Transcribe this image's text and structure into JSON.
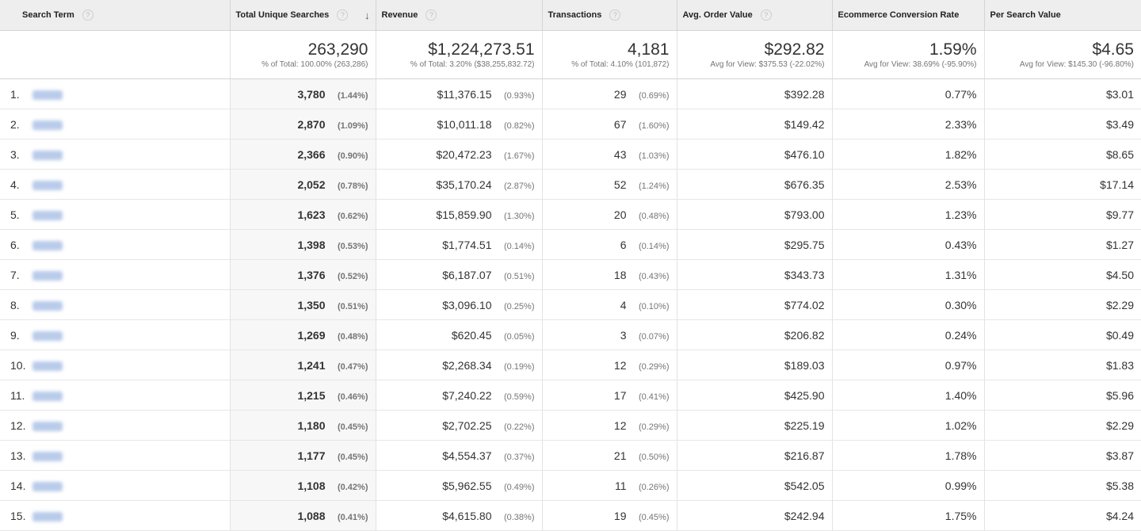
{
  "headers": {
    "search_term": "Search Term",
    "total_unique_searches": "Total Unique Searches",
    "revenue": "Revenue",
    "transactions": "Transactions",
    "avg_order_value": "Avg. Order Value",
    "conversion_rate": "Ecommerce Conversion Rate",
    "per_search_value": "Per Search Value"
  },
  "icons": {
    "help": "help-circle-icon",
    "sort": "arrow-down-icon"
  },
  "totals": {
    "searches": "263,290",
    "searches_sub": "% of Total: 100.00% (263,286)",
    "revenue": "$1,224,273.51",
    "revenue_sub": "% of Total: 3.20% ($38,255,832.72)",
    "transactions": "4,181",
    "transactions_sub": "% of Total: 4.10% (101,872)",
    "aov": "$292.82",
    "aov_sub": "Avg for View: $375.53 (-22.02%)",
    "conv": "1.59%",
    "conv_sub": "Avg for View: 38.69% (-95.90%)",
    "psv": "$4.65",
    "psv_sub": "Avg for View: $145.30 (-96.80%)"
  },
  "rows": [
    {
      "idx": "1.",
      "searches": "3,780",
      "searches_pct": "(1.44%)",
      "revenue": "$11,376.15",
      "revenue_pct": "(0.93%)",
      "transactions": "29",
      "transactions_pct": "(0.69%)",
      "aov": "$392.28",
      "conv": "0.77%",
      "psv": "$3.01"
    },
    {
      "idx": "2.",
      "searches": "2,870",
      "searches_pct": "(1.09%)",
      "revenue": "$10,011.18",
      "revenue_pct": "(0.82%)",
      "transactions": "67",
      "transactions_pct": "(1.60%)",
      "aov": "$149.42",
      "conv": "2.33%",
      "psv": "$3.49"
    },
    {
      "idx": "3.",
      "searches": "2,366",
      "searches_pct": "(0.90%)",
      "revenue": "$20,472.23",
      "revenue_pct": "(1.67%)",
      "transactions": "43",
      "transactions_pct": "(1.03%)",
      "aov": "$476.10",
      "conv": "1.82%",
      "psv": "$8.65"
    },
    {
      "idx": "4.",
      "searches": "2,052",
      "searches_pct": "(0.78%)",
      "revenue": "$35,170.24",
      "revenue_pct": "(2.87%)",
      "transactions": "52",
      "transactions_pct": "(1.24%)",
      "aov": "$676.35",
      "conv": "2.53%",
      "psv": "$17.14"
    },
    {
      "idx": "5.",
      "searches": "1,623",
      "searches_pct": "(0.62%)",
      "revenue": "$15,859.90",
      "revenue_pct": "(1.30%)",
      "transactions": "20",
      "transactions_pct": "(0.48%)",
      "aov": "$793.00",
      "conv": "1.23%",
      "psv": "$9.77"
    },
    {
      "idx": "6.",
      "searches": "1,398",
      "searches_pct": "(0.53%)",
      "revenue": "$1,774.51",
      "revenue_pct": "(0.14%)",
      "transactions": "6",
      "transactions_pct": "(0.14%)",
      "aov": "$295.75",
      "conv": "0.43%",
      "psv": "$1.27"
    },
    {
      "idx": "7.",
      "searches": "1,376",
      "searches_pct": "(0.52%)",
      "revenue": "$6,187.07",
      "revenue_pct": "(0.51%)",
      "transactions": "18",
      "transactions_pct": "(0.43%)",
      "aov": "$343.73",
      "conv": "1.31%",
      "psv": "$4.50"
    },
    {
      "idx": "8.",
      "searches": "1,350",
      "searches_pct": "(0.51%)",
      "revenue": "$3,096.10",
      "revenue_pct": "(0.25%)",
      "transactions": "4",
      "transactions_pct": "(0.10%)",
      "aov": "$774.02",
      "conv": "0.30%",
      "psv": "$2.29"
    },
    {
      "idx": "9.",
      "searches": "1,269",
      "searches_pct": "(0.48%)",
      "revenue": "$620.45",
      "revenue_pct": "(0.05%)",
      "transactions": "3",
      "transactions_pct": "(0.07%)",
      "aov": "$206.82",
      "conv": "0.24%",
      "psv": "$0.49"
    },
    {
      "idx": "10.",
      "searches": "1,241",
      "searches_pct": "(0.47%)",
      "revenue": "$2,268.34",
      "revenue_pct": "(0.19%)",
      "transactions": "12",
      "transactions_pct": "(0.29%)",
      "aov": "$189.03",
      "conv": "0.97%",
      "psv": "$1.83"
    },
    {
      "idx": "11.",
      "searches": "1,215",
      "searches_pct": "(0.46%)",
      "revenue": "$7,240.22",
      "revenue_pct": "(0.59%)",
      "transactions": "17",
      "transactions_pct": "(0.41%)",
      "aov": "$425.90",
      "conv": "1.40%",
      "psv": "$5.96"
    },
    {
      "idx": "12.",
      "searches": "1,180",
      "searches_pct": "(0.45%)",
      "revenue": "$2,702.25",
      "revenue_pct": "(0.22%)",
      "transactions": "12",
      "transactions_pct": "(0.29%)",
      "aov": "$225.19",
      "conv": "1.02%",
      "psv": "$2.29"
    },
    {
      "idx": "13.",
      "searches": "1,177",
      "searches_pct": "(0.45%)",
      "revenue": "$4,554.37",
      "revenue_pct": "(0.37%)",
      "transactions": "21",
      "transactions_pct": "(0.50%)",
      "aov": "$216.87",
      "conv": "1.78%",
      "psv": "$3.87"
    },
    {
      "idx": "14.",
      "searches": "1,108",
      "searches_pct": "(0.42%)",
      "revenue": "$5,962.55",
      "revenue_pct": "(0.49%)",
      "transactions": "11",
      "transactions_pct": "(0.26%)",
      "aov": "$542.05",
      "conv": "0.99%",
      "psv": "$5.38"
    },
    {
      "idx": "15.",
      "searches": "1,088",
      "searches_pct": "(0.41%)",
      "revenue": "$4,615.80",
      "revenue_pct": "(0.38%)",
      "transactions": "19",
      "transactions_pct": "(0.45%)",
      "aov": "$242.94",
      "conv": "1.75%",
      "psv": "$4.24"
    }
  ]
}
